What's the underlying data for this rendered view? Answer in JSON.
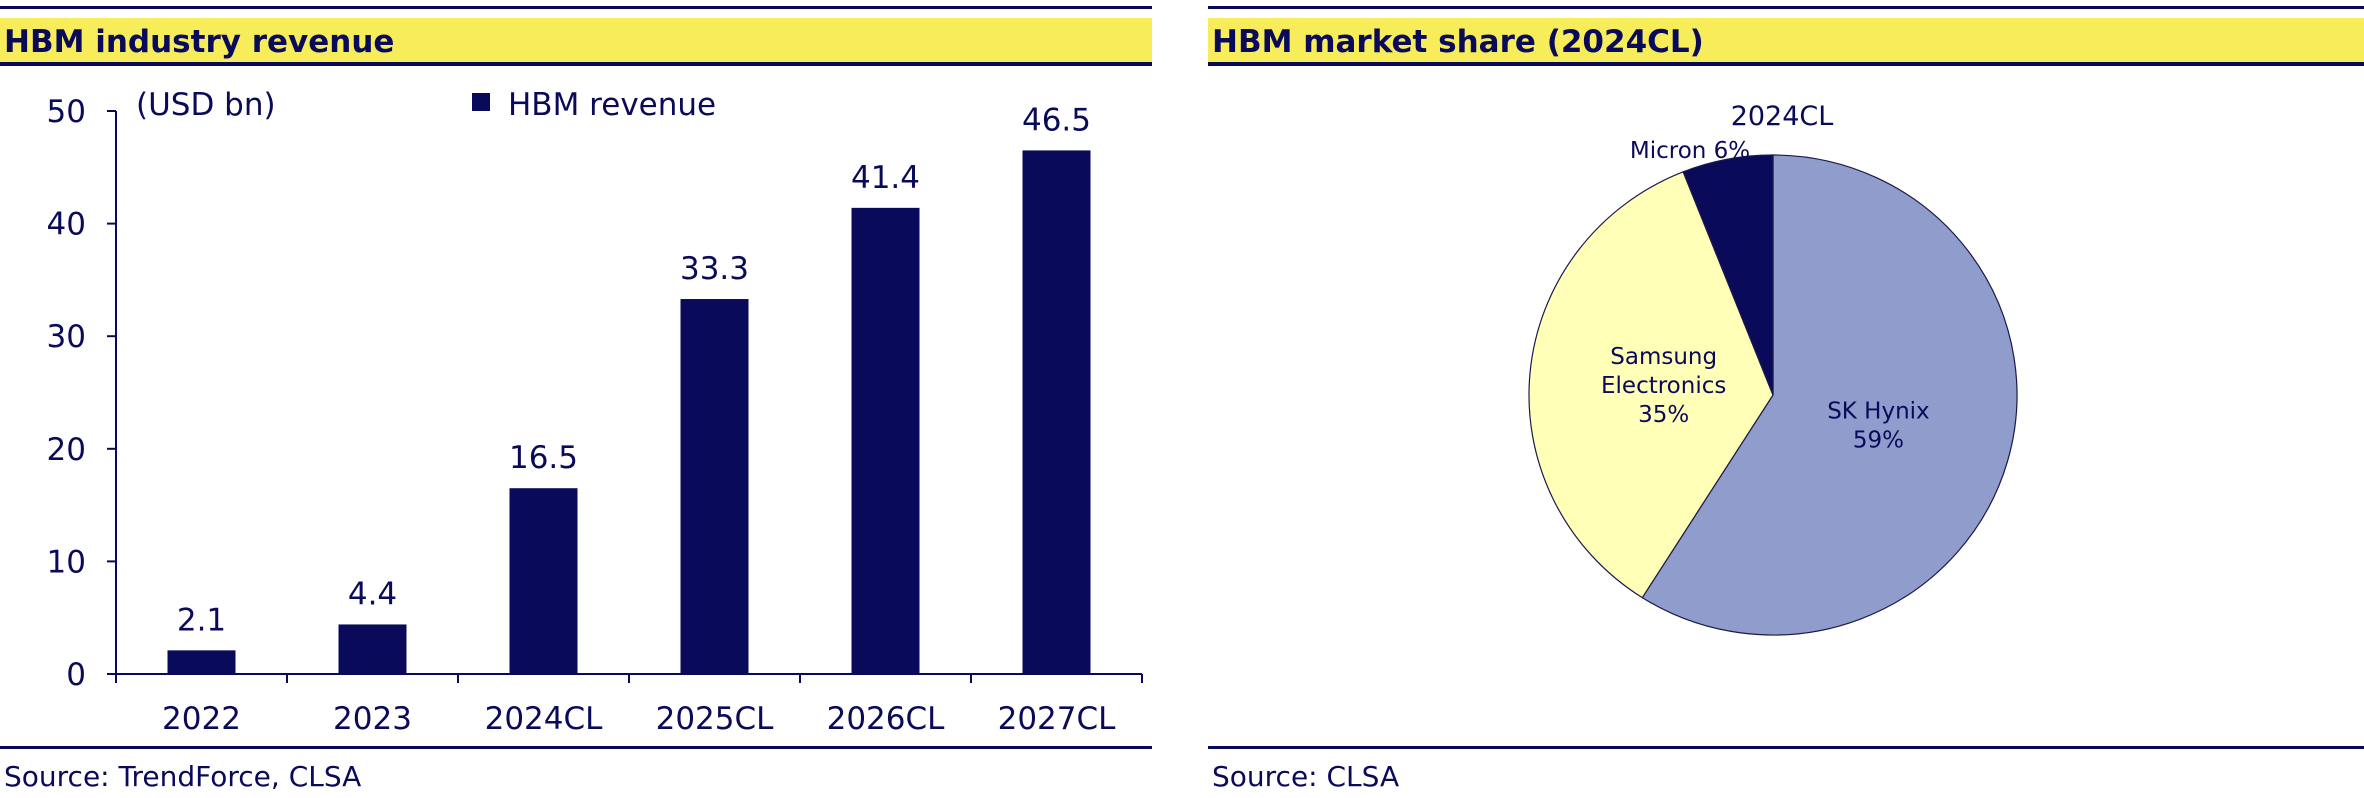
{
  "colors": {
    "navy": "#0a0a5a",
    "yellow": "#f7ec5a",
    "hynix": "#8f9ccc",
    "samsung": "#ffffb8",
    "micron": "#0a0a5a"
  },
  "left_panel": {
    "title": "HBM industry revenue",
    "source": "Source: TrendForce, CLSA",
    "unit_label": "(USD bn)",
    "legend_label": "HBM revenue"
  },
  "right_panel": {
    "title": "HBM market share (2024CL)",
    "source": "Source: CLSA",
    "chart_title": "2024CL"
  },
  "chart_data": [
    {
      "type": "bar",
      "categories": [
        "2022",
        "2023",
        "2024CL",
        "2025CL",
        "2026CL",
        "2027CL"
      ],
      "series": [
        {
          "name": "HBM revenue",
          "values": [
            2.1,
            4.4,
            16.5,
            33.3,
            41.4,
            46.5
          ]
        }
      ],
      "data_labels": [
        "2.1",
        "4.4",
        "16.5",
        "33.3",
        "41.4",
        "46.5"
      ],
      "ylabel": "(USD bn)",
      "ylim": [
        0,
        50
      ],
      "yticks": [
        0,
        10,
        20,
        30,
        40,
        50
      ],
      "legend": "top"
    },
    {
      "type": "pie",
      "title": "2024CL",
      "slices": [
        {
          "label": "SK Hynix",
          "label_lines": [
            "SK Hynix",
            "59%"
          ],
          "value": 59
        },
        {
          "label": "Samsung Electronics",
          "label_lines": [
            "Samsung",
            "Electronics",
            "35%"
          ],
          "value": 35
        },
        {
          "label": "Micron",
          "label_lines": [
            "Micron 6%"
          ],
          "value": 6
        }
      ]
    }
  ]
}
